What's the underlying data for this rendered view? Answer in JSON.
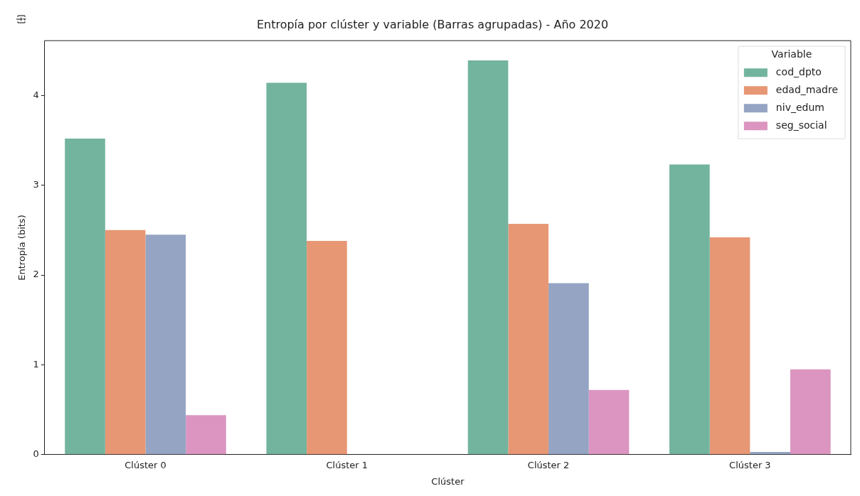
{
  "chart_data": {
    "type": "bar",
    "title": "Entropía por clúster y variable (Barras agrupadas) - Año 2020",
    "xlabel": "Clúster",
    "ylabel": "Entropía (bits)",
    "legend_title": "Variable",
    "categories": [
      "Clúster 0",
      "Clúster 1",
      "Clúster 2",
      "Clúster 3"
    ],
    "series": [
      {
        "name": "cod_dpto",
        "color": "#73b49f",
        "values": [
          3.52,
          4.14,
          4.39,
          3.23
        ]
      },
      {
        "name": "edad_madre",
        "color": "#e79774",
        "values": [
          2.5,
          2.38,
          2.57,
          2.42
        ]
      },
      {
        "name": "niv_edum",
        "color": "#95a4c2",
        "values": [
          2.45,
          0,
          1.91,
          0.03
        ]
      },
      {
        "name": "seg_social",
        "color": "#db95c0",
        "values": [
          0.44,
          0,
          0.72,
          0.95
        ]
      }
    ],
    "ylim": [
      0,
      4.61
    ],
    "yticks": [
      0,
      1,
      2,
      3,
      4
    ],
    "grid": false,
    "legend": "top right"
  }
}
